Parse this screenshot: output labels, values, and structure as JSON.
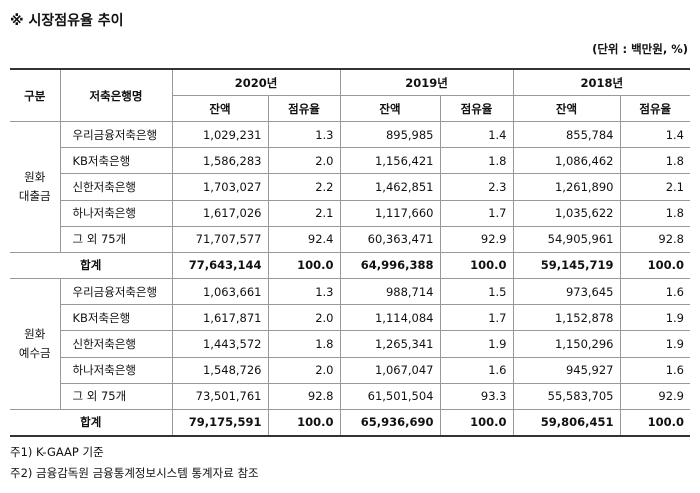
{
  "title": "※ 시장점유율 추이",
  "unit": "(단위 : 백만원, %)",
  "table": {
    "header": {
      "group": "구분",
      "bank": "저축은행명",
      "years": [
        "2020년",
        "2019년",
        "2018년"
      ],
      "subheaders": [
        "잔액",
        "점유율",
        "잔액",
        "점유율",
        "잔액",
        "점유율"
      ]
    },
    "groups": [
      {
        "label": [
          "원화",
          "대출금"
        ],
        "rows": [
          [
            "우리금융저축은행",
            "1,029,231",
            "1.3",
            "895,985",
            "1.4",
            "855,784",
            "1.4"
          ],
          [
            "KB저축은행",
            "1,586,283",
            "2.0",
            "1,156,421",
            "1.8",
            "1,086,462",
            "1.8"
          ],
          [
            "신한저축은행",
            "1,703,027",
            "2.2",
            "1,462,851",
            "2.3",
            "1,261,890",
            "2.1"
          ],
          [
            "하나저축은행",
            "1,617,026",
            "2.1",
            "1,117,660",
            "1.7",
            "1,035,622",
            "1.8"
          ],
          [
            "그 외 75개",
            "71,707,577",
            "92.4",
            "60,363,471",
            "92.9",
            "54,905,961",
            "92.8"
          ]
        ],
        "total": [
          "합계",
          "77,643,144",
          "100.0",
          "64,996,388",
          "100.0",
          "59,145,719",
          "100.0"
        ]
      },
      {
        "label": [
          "원화",
          "예수금"
        ],
        "rows": [
          [
            "우리금융저축은행",
            "1,063,661",
            "1.3",
            "988,714",
            "1.5",
            "973,645",
            "1.6"
          ],
          [
            "KB저축은행",
            "1,617,871",
            "2.0",
            "1,114,084",
            "1.7",
            "1,152,878",
            "1.9"
          ],
          [
            "신한저축은행",
            "1,443,572",
            "1.8",
            "1,265,341",
            "1.9",
            "1,150,296",
            "1.9"
          ],
          [
            "하나저축은행",
            "1,548,726",
            "2.0",
            "1,067,047",
            "1.6",
            "945,927",
            "1.6"
          ],
          [
            "그 외 75개",
            "73,501,761",
            "92.8",
            "61,501,504",
            "93.3",
            "55,583,705",
            "92.9"
          ]
        ],
        "total": [
          "합계",
          "79,175,591",
          "100.0",
          "65,936,690",
          "100.0",
          "59,806,451",
          "100.0"
        ]
      }
    ]
  },
  "footnotes": [
    "주1) K-GAAP 기준",
    "주2) 금융감독원 금융통계정보시스템 통계자료 참조"
  ]
}
